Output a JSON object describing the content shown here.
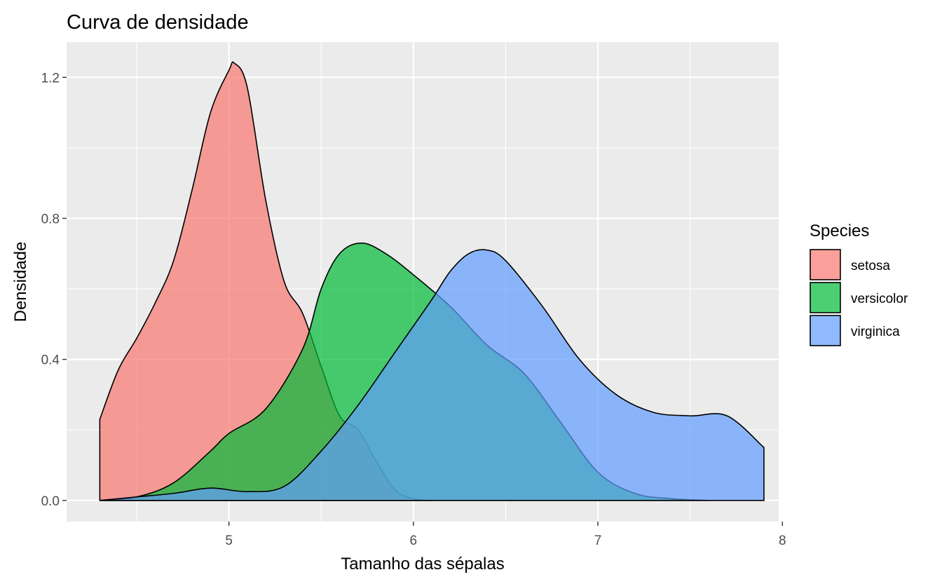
{
  "chart_data": {
    "type": "area",
    "title": "Curva de densidade",
    "xlabel": "Tamanho das sépalas",
    "ylabel": "Densidade",
    "xlim": [
      4.12,
      7.98
    ],
    "ylim": [
      -0.06,
      1.3
    ],
    "x_ticks": [
      5,
      6,
      7,
      8
    ],
    "x_tick_labels": [
      "5",
      "6",
      "7",
      "8"
    ],
    "y_ticks": [
      0.0,
      0.4,
      0.8,
      1.2
    ],
    "y_tick_labels": [
      "0.0",
      "0.4",
      "0.8",
      "1.2"
    ],
    "grid": true,
    "legend": {
      "title": "Species",
      "position": "right"
    },
    "series": [
      {
        "name": "setosa",
        "color": "#F8766D",
        "x": [
          4.3,
          4.4,
          4.5,
          4.6,
          4.7,
          4.8,
          4.9,
          5.0,
          5.03,
          5.1,
          5.2,
          5.3,
          5.4,
          5.5,
          5.6,
          5.7,
          5.8,
          5.9,
          6.0,
          6.1
        ],
        "y": [
          0.23,
          0.37,
          0.46,
          0.56,
          0.68,
          0.88,
          1.1,
          1.22,
          1.24,
          1.17,
          0.85,
          0.62,
          0.53,
          0.38,
          0.24,
          0.2,
          0.11,
          0.03,
          0.005,
          0.0
        ]
      },
      {
        "name": "versicolor",
        "color": "#00BA38",
        "x": [
          4.3,
          4.5,
          4.7,
          4.9,
          5.0,
          5.2,
          5.4,
          5.5,
          5.6,
          5.72,
          5.85,
          6.0,
          6.2,
          6.4,
          6.6,
          6.8,
          7.0,
          7.2,
          7.4,
          7.6
        ],
        "y": [
          0.0,
          0.01,
          0.05,
          0.14,
          0.19,
          0.26,
          0.43,
          0.6,
          0.7,
          0.73,
          0.7,
          0.64,
          0.55,
          0.44,
          0.36,
          0.22,
          0.08,
          0.02,
          0.005,
          0.0
        ]
      },
      {
        "name": "virginica",
        "color": "#619CFF",
        "x": [
          4.3,
          4.5,
          4.7,
          4.9,
          5.1,
          5.3,
          5.5,
          5.7,
          5.9,
          6.1,
          6.2,
          6.3,
          6.4,
          6.5,
          6.7,
          6.9,
          7.1,
          7.3,
          7.5,
          7.7,
          7.9
        ],
        "y": [
          0.0,
          0.01,
          0.02,
          0.035,
          0.025,
          0.04,
          0.14,
          0.27,
          0.42,
          0.57,
          0.65,
          0.7,
          0.71,
          0.68,
          0.55,
          0.4,
          0.3,
          0.25,
          0.24,
          0.24,
          0.15
        ]
      }
    ]
  }
}
